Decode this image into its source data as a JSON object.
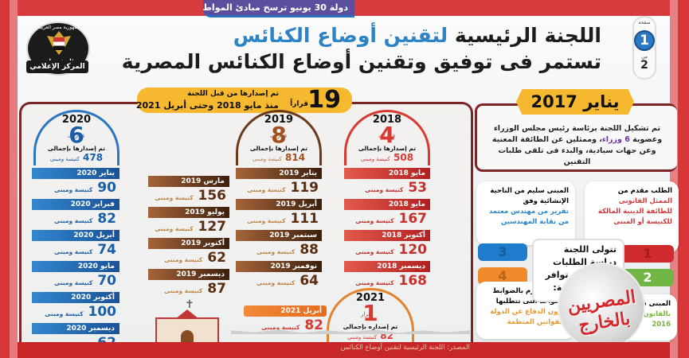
{
  "ticker": {
    "text": "دولة 30 يونيو ترسخ مبادئ المواطنة والوحدة الوطنية.."
  },
  "logo": {
    "ring_text": "جمهورية مصر العربية",
    "inner_text": "رئاسة مجلس الوزراء",
    "banner": "المركز الإعلامي"
  },
  "header": {
    "title_part1": "اللجنة الرئيسية ",
    "title_highlight": "لتقنين أوضاع الكنائس",
    "title_line2": "تستمر فى توفيق وتقنين أوضاع الكنائس المصرية"
  },
  "pagination": {
    "label": "صفحة",
    "current": "1",
    "of_label": "من",
    "total": "2"
  },
  "summary": {
    "count": "19",
    "unit": "قراراً",
    "line1": "تم إصدارها من قبل اللجنة",
    "line2": "منذ مايو 2018 وحتى أبريل 2021"
  },
  "formation": {
    "ribbon": "يناير 2017",
    "text_before": "تم تشكيل اللجنة برئاسة رئيس مجلس الوزراء وعضوية ",
    "text_highlight": "6 وزراء",
    "text_after": "، وممثلين عن الطائفة المعنية وعن جهات سيادية، والبدء فى تلقى طلبات التقنين"
  },
  "unit_label": "كنيسة ومبنى",
  "years": [
    {
      "year": "2018",
      "decisions": "4",
      "decisions_label": "قرارات",
      "total_label": "تم إصدارها بإجمالى",
      "total": "508",
      "accent": "#d83a32",
      "months": [
        {
          "month": "مايو 2018",
          "value": "53"
        },
        {
          "month": "مايو 2018",
          "value": "167"
        },
        {
          "month": "أكتوبر 2018",
          "value": "120"
        },
        {
          "month": "ديسمبر 2018",
          "value": "168"
        }
      ]
    },
    {
      "year": "2019",
      "decisions": "8",
      "decisions_label": "قرارات",
      "total_label": "تم إصدارها بإجمالى",
      "total": "814",
      "accent": "#6b3a1c",
      "months": [
        {
          "month": "يناير 2019",
          "value": "119"
        },
        {
          "month": "أبريل 2019",
          "value": "111"
        },
        {
          "month": "سبتمبر 2019",
          "value": "88"
        },
        {
          "month": "نوفمبر 2019",
          "value": "64"
        },
        {
          "month": "مارس 2019",
          "value": "156"
        },
        {
          "month": "يوليو 2019",
          "value": "127"
        },
        {
          "month": "أكتوبر 2019",
          "value": "62"
        },
        {
          "month": "ديسمبر 2019",
          "value": "87"
        }
      ]
    },
    {
      "year": "2020",
      "decisions": "6",
      "decisions_label": "قرارات",
      "total_label": "تم إصدارها بإجمالى",
      "total": "478",
      "accent": "#2d77c0",
      "months": [
        {
          "month": "يناير 2020",
          "value": "90"
        },
        {
          "month": "فبراير 2020",
          "value": "82"
        },
        {
          "month": "أبريل 2020",
          "value": "74"
        },
        {
          "month": "مايو 2020",
          "value": "70"
        },
        {
          "month": "أكتوبر 2020",
          "value": "100"
        },
        {
          "month": "ديسمبر 2020",
          "value": "62"
        }
      ]
    },
    {
      "year": "2021",
      "decisions": "1",
      "decisions_label": "قرار",
      "total_label": "تم إصداره بإجمالى",
      "total": "82",
      "accent": "#e4832d",
      "months": [
        {
          "month": "أبريل 2021",
          "value": "82"
        }
      ]
    }
  ],
  "requirements": {
    "intro": "تتولى اللجنة دراسة الطلبات والتأكد من توافر الشروط الآتية:",
    "items": [
      {
        "num": "1",
        "lead": "الطلب مقدم من",
        "highlight": "الممثل القانونى للطائفة الدينية المالكة للكنيسة أو المبنى",
        "color": "#d13a3b"
      },
      {
        "num": "2",
        "lead": "المبنى قائم فى ...",
        "highlight": "بالقانون ... لسنة 2016",
        "color": "#76b53e"
      },
      {
        "num": "3",
        "lead": "المبنى سليم من الناحية الإنشائية وفق",
        "highlight": "تقرير من مهندس معتمد من نقابة المهندسين",
        "color": "#2b86c9"
      },
      {
        "num": "4",
        "lead": "المبنى ملتزم بالضوابط والقواعد التى تتطلبها",
        "highlight": "شؤون الدفاع عن الدولة والقوانين المنظمة",
        "color": "#e8982e"
      }
    ]
  },
  "watermark": {
    "text": "المصريين بالخارج"
  },
  "footer": {
    "source": "المصدر: اللجنة الرئيسية لتقنين أوضاع الكنائس"
  }
}
